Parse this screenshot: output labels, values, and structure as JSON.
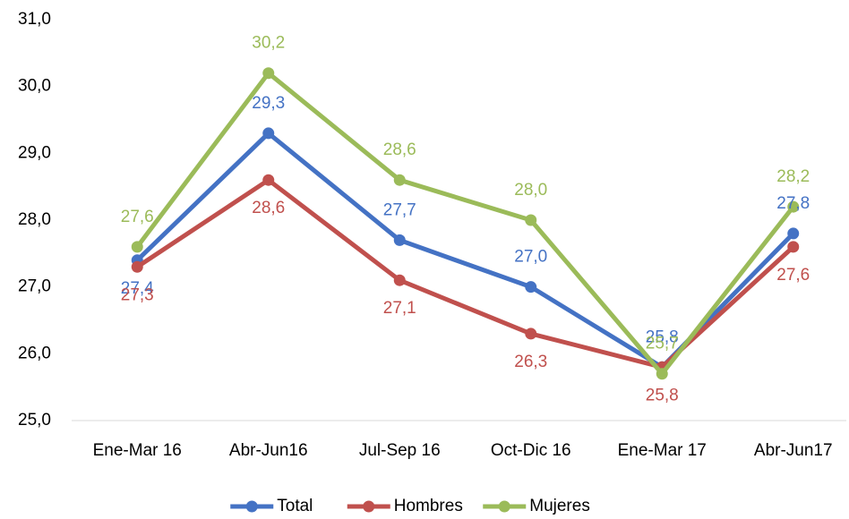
{
  "chart_data": {
    "type": "line",
    "categories": [
      "Ene-Mar 16",
      "Abr-Jun16",
      "Jul-Sep 16",
      "Oct-Dic 16",
      "Ene-Mar 17",
      "Abr-Jun17"
    ],
    "series": [
      {
        "name": "Total",
        "color": "#4472c4",
        "values": [
          27.4,
          29.3,
          27.7,
          27.0,
          25.8,
          27.8
        ],
        "value_labels": [
          "27,4",
          "29,3",
          "27,7",
          "27,0",
          "25,8",
          "27,8"
        ]
      },
      {
        "name": "Hombres",
        "color": "#c0504d",
        "values": [
          27.3,
          28.6,
          27.1,
          26.3,
          25.8,
          27.6
        ],
        "value_labels": [
          "27,3",
          "28,6",
          "27,1",
          "26,3",
          "25,8",
          "27,6"
        ]
      },
      {
        "name": "Mujeres",
        "color": "#9bbb59",
        "values": [
          27.6,
          30.2,
          28.6,
          28.0,
          25.7,
          28.2
        ],
        "value_labels": [
          "27,6",
          "30,2",
          "28,6",
          "28,0",
          "25,7",
          "28,2"
        ]
      }
    ],
    "ylim": [
      25,
      31
    ],
    "yticks": [
      {
        "value": 25,
        "label": "25,0"
      },
      {
        "value": 26,
        "label": "26,0"
      },
      {
        "value": 27,
        "label": "27,0"
      },
      {
        "value": 28,
        "label": "28,0"
      },
      {
        "value": 29,
        "label": "29,0"
      },
      {
        "value": 30,
        "label": "30,0"
      },
      {
        "value": 31,
        "label": "31,0"
      }
    ],
    "grid": false,
    "legend": "bottom"
  }
}
